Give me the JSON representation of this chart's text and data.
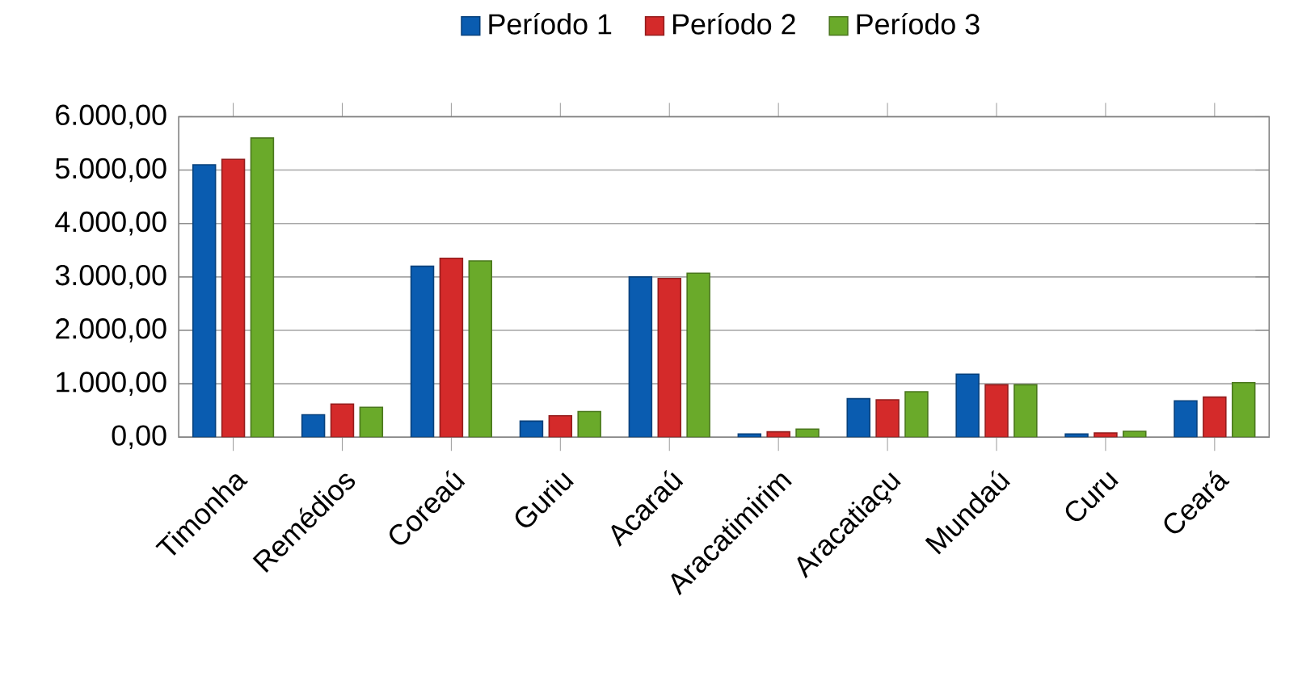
{
  "chart_data": {
    "type": "bar",
    "categories": [
      "Timonha",
      "Remédios",
      "Coreaú",
      "Guriu",
      "Acaraú",
      "Aracatimirim",
      "Aracatiaçu",
      "Mundaú",
      "Curu",
      "Ceará"
    ],
    "series": [
      {
        "name": "Período 1",
        "color": "#0a5cb0",
        "values": [
          5100,
          420,
          3200,
          300,
          3000,
          60,
          720,
          1180,
          60,
          680
        ]
      },
      {
        "name": "Período 2",
        "color": "#d42a2a",
        "values": [
          5200,
          620,
          3350,
          400,
          2970,
          100,
          700,
          980,
          80,
          750
        ]
      },
      {
        "name": "Período 3",
        "color": "#6aaa2a",
        "values": [
          5600,
          560,
          3300,
          480,
          3070,
          150,
          850,
          980,
          110,
          1020
        ]
      }
    ],
    "ylim": [
      0,
      6000
    ],
    "yticks": [
      {
        "value": 0,
        "label": "0,00"
      },
      {
        "value": 1000,
        "label": "1.000,00"
      },
      {
        "value": 2000,
        "label": "2.000,00"
      },
      {
        "value": 3000,
        "label": "3.000,00"
      },
      {
        "value": 4000,
        "label": "4.000,00"
      },
      {
        "value": 5000,
        "label": "5.000,00"
      },
      {
        "value": 6000,
        "label": "6.000,00"
      }
    ],
    "grid": "y",
    "legend": "top"
  }
}
